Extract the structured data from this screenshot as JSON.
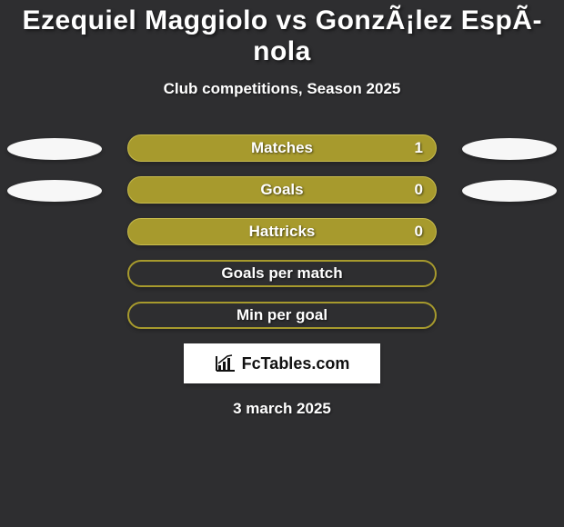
{
  "title": "Ezequiel Maggiolo vs GonzÃ¡lez EspÃ­nola",
  "subtitle": "Club competitions, Season 2025",
  "date": "3 march 2025",
  "logo_text": "FcTables.com",
  "colors": {
    "background": "#2e2e30",
    "bar_fill": "#a79a2d",
    "bar_border": "#c9bd4d",
    "ellipse": "#f7f7f7",
    "text": "#ffffff",
    "logo_bg": "#ffffff",
    "logo_text": "#111111"
  },
  "rows": [
    {
      "label": "Matches",
      "value": "1",
      "filled": true,
      "left_ellipse": true,
      "right_ellipse": true
    },
    {
      "label": "Goals",
      "value": "0",
      "filled": true,
      "left_ellipse": true,
      "right_ellipse": true
    },
    {
      "label": "Hattricks",
      "value": "0",
      "filled": true,
      "left_ellipse": false,
      "right_ellipse": false
    },
    {
      "label": "Goals per match",
      "value": "",
      "filled": false,
      "left_ellipse": false,
      "right_ellipse": false
    },
    {
      "label": "Min per goal",
      "value": "",
      "filled": false,
      "left_ellipse": false,
      "right_ellipse": false
    }
  ]
}
